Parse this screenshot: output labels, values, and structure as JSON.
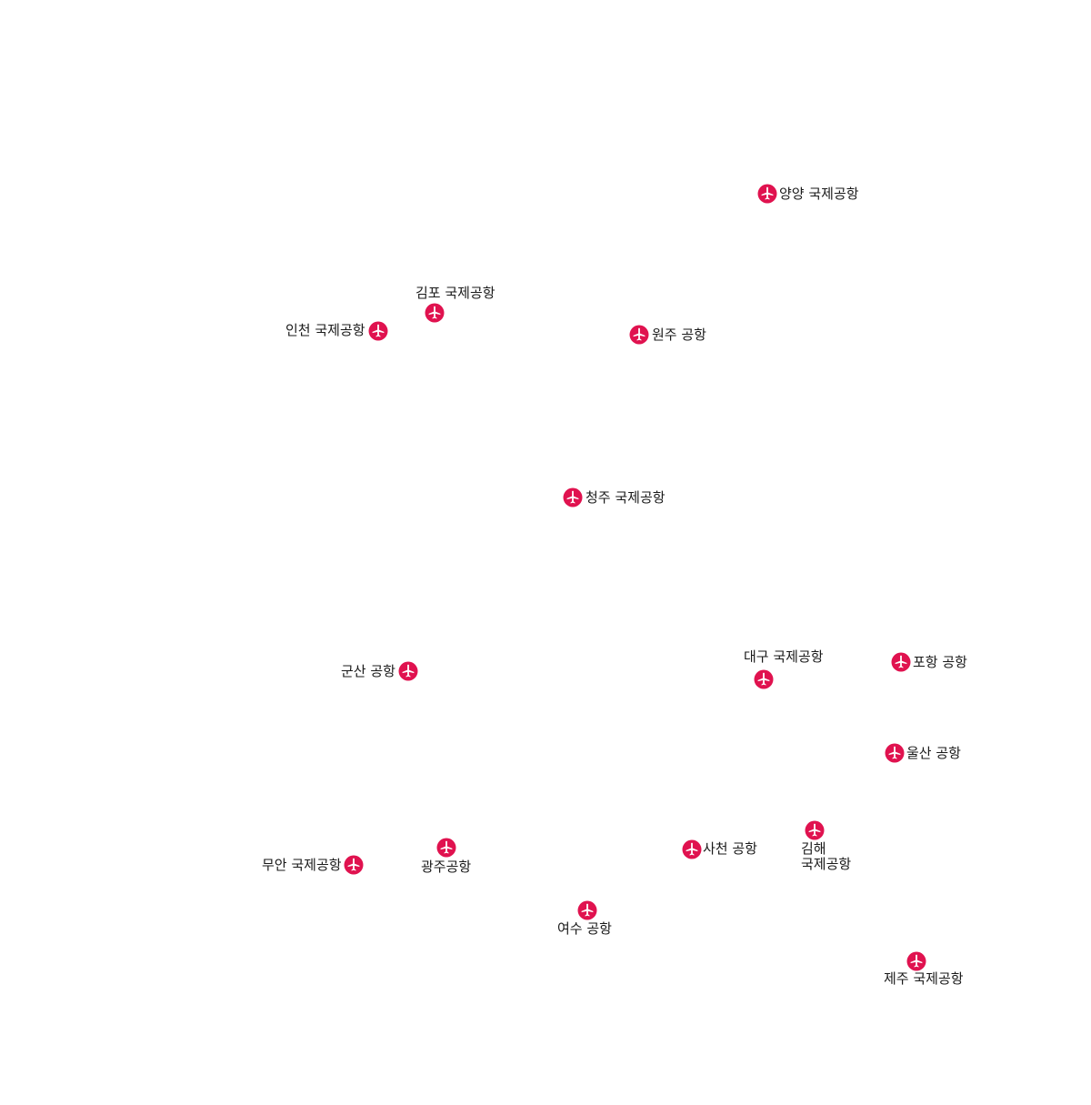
{
  "airport_icon": "airplane-icon",
  "colors": {
    "marker": "#e0124f",
    "label": "#1a1a1a",
    "background": "#ffffff"
  },
  "airports": {
    "yangyang": "양양 국제공항",
    "gimpo": "김포 국제공항",
    "incheon": "인천 국제공항",
    "wonju": "원주 공항",
    "cheongju": "청주 국제공항",
    "gunsan": "군산 공항",
    "daegu": "대구 국제공항",
    "pohang": "포항 공항",
    "ulsan": "울산 공항",
    "muan": "무안 국제공항",
    "gwangju": "광주공항",
    "sacheon": "사천 공항",
    "gimhae_line1": "김해",
    "gimhae_line2": "국제공항",
    "yeosu": "여수 공항",
    "jeju": "제주 국제공항"
  }
}
